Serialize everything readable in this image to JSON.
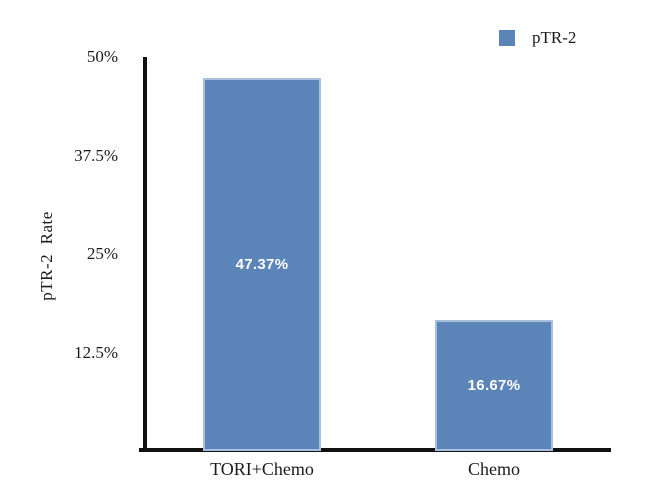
{
  "chart_data": {
    "type": "bar",
    "title": "",
    "categories": [
      "TORI+Chemo",
      "Chemo"
    ],
    "series": [
      {
        "name": "pTR-2",
        "values": [
          47.37,
          16.67
        ]
      }
    ],
    "value_labels": [
      "47.37%",
      "16.67%"
    ],
    "xlabel": "",
    "ylabel": "pTR-2  Rate",
    "ylim": [
      0,
      50
    ],
    "yticks": [
      {
        "value": 50,
        "label": "50%"
      },
      {
        "value": 37.5,
        "label": "37.5%"
      },
      {
        "value": 25,
        "label": "25%"
      },
      {
        "value": 12.5,
        "label": "12.5%"
      }
    ],
    "grid": false,
    "legend": {
      "position": "top-right",
      "entries": [
        {
          "label": "pTR-2",
          "color": "#5b84b8"
        }
      ]
    },
    "colors": {
      "bar_fill": "#5b84b8",
      "bar_border": "#a9c0dc",
      "axis": "#111111",
      "bar_label_text": "#ffffff",
      "tick_text": "#1b1b1b"
    }
  }
}
